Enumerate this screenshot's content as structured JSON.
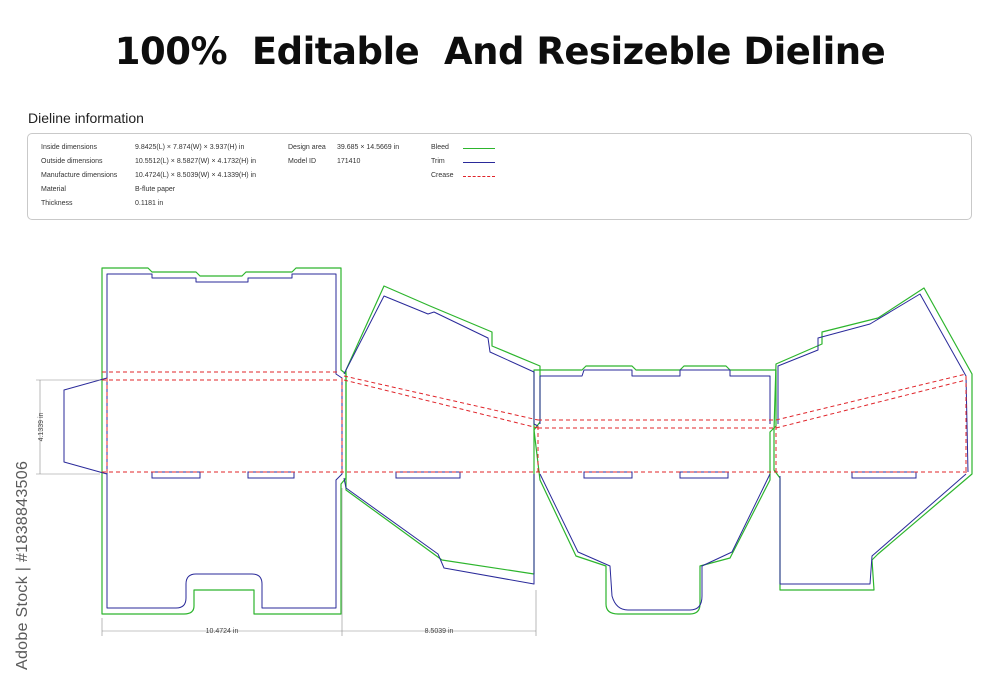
{
  "headline": "100%  Editable  And Resizeble Dieline",
  "info": {
    "title": "Dieline information",
    "rows": [
      {
        "label": "Inside dimensions",
        "value": "9.8425(L) × 7.874(W) × 3.937(H) in"
      },
      {
        "label": "Outside dimensions",
        "value": "10.5512(L) × 8.5827(W) × 4.1732(H) in"
      },
      {
        "label": "Manufacture dimensions",
        "value": "10.4724(L) × 8.5039(W) × 4.1339(H) in"
      },
      {
        "label": "Material",
        "value": "B-flute paper"
      },
      {
        "label": "Thickness",
        "value": "0.1181 in"
      }
    ],
    "design_area_label": "Design area",
    "design_area_value": "39.685 × 14.5669 in",
    "model_id_label": "Model ID",
    "model_id_value": "171410"
  },
  "legend": [
    {
      "label": "Bleed",
      "color": "#2db52d",
      "style": "solid"
    },
    {
      "label": "Trim",
      "color": "#2a2a9a",
      "style": "solid"
    },
    {
      "label": "Crease",
      "color": "#e0242a",
      "style": "dashed"
    }
  ],
  "dimensions": {
    "height": "4.1339 in",
    "panel1_width": "10.4724 in",
    "panel2_width": "8.5039 in"
  },
  "watermark": "Adobe Stock | #1838843506",
  "colors": {
    "bleed": "#2db52d",
    "trim": "#2a2a9a",
    "crease": "#e0242a",
    "dimension": "#8a8a8a"
  }
}
